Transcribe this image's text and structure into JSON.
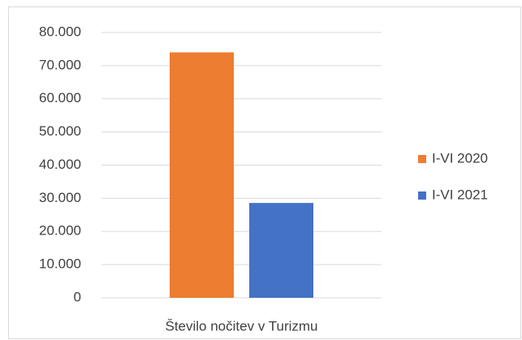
{
  "chart_data": {
    "type": "bar",
    "categories": [
      "Število nočitev v Turizmu"
    ],
    "series": [
      {
        "name": "I-VI 2020",
        "color": "#ed7d31",
        "values": [
          74000
        ]
      },
      {
        "name": "I-VI 2021",
        "color": "#4472c4",
        "values": [
          28600
        ]
      }
    ],
    "ylim": [
      0,
      80000
    ],
    "yticks": [
      0,
      {
        "value": 10000,
        "label": "10.000"
      },
      {
        "value": 20000,
        "label": "20.000"
      },
      {
        "value": 30000,
        "label": "30.000"
      },
      {
        "value": 40000,
        "label": "40.000"
      },
      {
        "value": 50000,
        "label": "50.000"
      },
      {
        "value": 60000,
        "label": "60.000"
      },
      {
        "value": 70000,
        "label": "70.000"
      },
      {
        "value": 80000,
        "label": "80.000"
      }
    ],
    "grid": true,
    "legend": "right"
  }
}
